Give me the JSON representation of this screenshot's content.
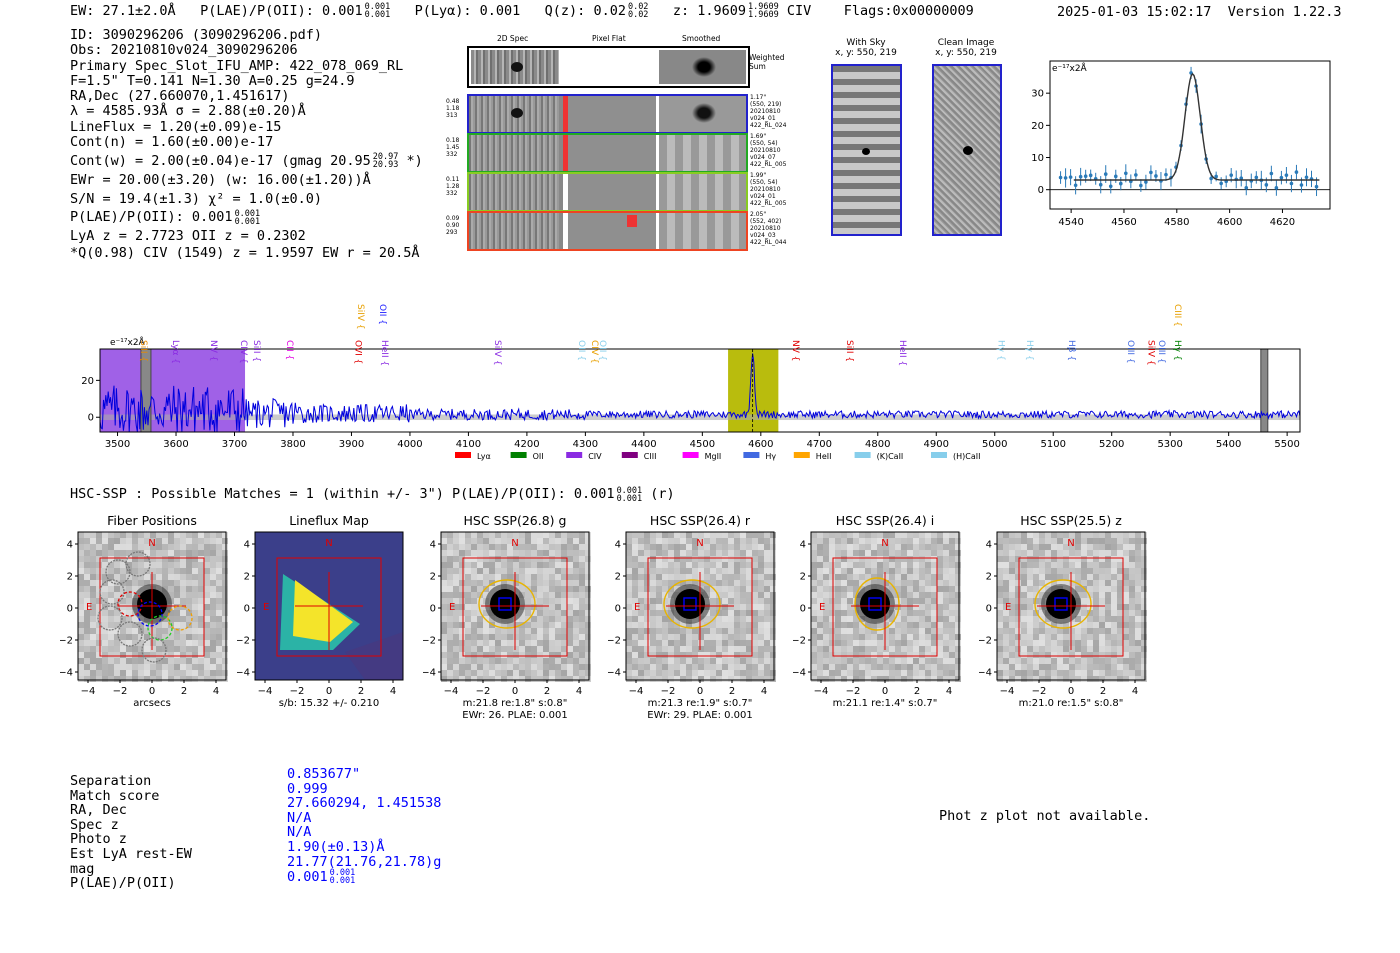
{
  "header": {
    "ew_text": "EW: 27.1±2.0Å",
    "plae_text": "P(LAE)/P(OII): 0.001",
    "plae_sup": [
      "0.001",
      "0.001"
    ],
    "plya_text": "P(Lyα): 0.001",
    "qz_text": "Q(z): 0.02",
    "qz_sup": [
      "0.02",
      "0.02"
    ],
    "z_text": "z: 1.9609",
    "z_sup": [
      "1.9609",
      "1.9609"
    ],
    "line_text": "CIV",
    "flags_text": "Flags:0x00000009",
    "timestamp": "2025-01-03 15:02:17",
    "version": "Version 1.22.3"
  },
  "info": {
    "lines": [
      "ID: 3090296206 (3090296206.pdf)",
      "Obs: 20210810v024_3090296206",
      "Primary Spec_Slot_IFU_AMP: 422_078_069_RL",
      "F=1.5\"  T=0.141  N=1.30  A=0.25  g=24.9",
      "RA,Dec (27.660070,1.451617)",
      "λ = 4585.93Å  σ = 2.88(±0.20)Å",
      "LineFlux = 1.20(±0.09)e-15",
      "Cont(n) = 1.60(±0.00)e-17",
      "Cont(w) = 2.00(±0.04)e-17 (gmag 20.95",
      "EWr = 20.00(±3.20) (w: 16.00(±1.20))Å",
      "S/N = 19.4(±1.3)  χ² = 1.0(±0.0)",
      "P(LAE)/P(OII): 0.001",
      "LyA z = 2.7723  OII z = 0.2302",
      "*Q(0.98) CIV (1549) z = 1.9597  EW r = 20.5Å"
    ],
    "gmag_sup": [
      "20.97",
      "20.93"
    ],
    "gmag_tail": "*)",
    "plae_sup": [
      "0.001",
      "0.001"
    ]
  },
  "cutouts": {
    "col_headers": [
      "2D Spec",
      "Pixel Flat",
      "Smoothed"
    ],
    "weighted_label": "Weighted Sum",
    "rows": [
      {
        "left": [
          "0.48",
          "1.18",
          "313"
        ],
        "right": [
          "1.17\"",
          "(550, 219)",
          "20210810",
          "v024_01",
          "422_RL_024"
        ]
      },
      {
        "left": [
          "0.18",
          "1.45",
          "332"
        ],
        "right": [
          "1.69\"",
          "(550, 54)",
          "20210810",
          "v024_07",
          "422_RL_005"
        ]
      },
      {
        "left": [
          "0.11",
          "1.28",
          "332"
        ],
        "right": [
          "1.99\"",
          "(550, 54)",
          "20210810",
          "v024_01",
          "422_RL_005"
        ]
      },
      {
        "left": [
          "0.09",
          "0.90",
          "293"
        ],
        "right": [
          "2.05\"",
          "(552, 402)",
          "20210810",
          "v024_03",
          "422_RL_044"
        ]
      }
    ],
    "sky_title": "With Sky",
    "sky_sub": "x, y: 550, 219",
    "clean_title": "Clean Image",
    "clean_sub": "x, y: 550, 219"
  },
  "zoom_chart": {
    "type": "line",
    "ylabel": "e⁻¹⁷x2Å",
    "x_ticks": [
      4540,
      4560,
      4580,
      4600,
      4620
    ],
    "y_ticks": [
      0,
      10,
      20,
      30
    ],
    "xlim": [
      4532,
      4638
    ],
    "ylim": [
      -6,
      40
    ],
    "peak_x": 4586,
    "peak_y": 36,
    "continuum": 3,
    "sigma": 2.88
  },
  "chart_data": {
    "type": "line",
    "title": "",
    "ylabel": "e⁻¹⁷x2Å",
    "xlabel": "",
    "x_ticks": [
      3500,
      3600,
      3700,
      3800,
      3900,
      4000,
      4100,
      4200,
      4300,
      4400,
      4500,
      4600,
      4700,
      4800,
      4900,
      5000,
      5100,
      5200,
      5300,
      5400,
      5500
    ],
    "y_ticks": [
      0,
      20
    ],
    "xlim": [
      3470,
      5522
    ],
    "ylim": [
      -8,
      37
    ],
    "highlight_regions": [
      {
        "from": 3470,
        "to": 3718,
        "color": "#9b59e6"
      },
      {
        "from": 4544,
        "to": 4630,
        "color": "#b5b800"
      }
    ],
    "emission_line": {
      "x": 4586,
      "peak": 35
    },
    "line_labels": [
      {
        "name": "SiII",
        "x": 3535,
        "color": "#e88a00",
        "level": 0
      },
      {
        "name": "Lyα",
        "x": 3590,
        "color": "#8a2be2",
        "level": 0
      },
      {
        "name": "NV",
        "x": 3655,
        "color": "#8a2be2",
        "level": 0
      },
      {
        "name": "CIV",
        "x": 3706,
        "color": "#8a2be2",
        "level": 0
      },
      {
        "name": "SiII",
        "x": 3728,
        "color": "#8a2be2",
        "level": 0
      },
      {
        "name": "CII",
        "x": 3785,
        "color": "#e000e0",
        "level": 0
      },
      {
        "name": "OVI",
        "x": 3902,
        "color": "#e00000",
        "level": 0
      },
      {
        "name": "SiIV",
        "x": 3906,
        "color": "#e8a000",
        "level": 1
      },
      {
        "name": "OII",
        "x": 3944,
        "color": "#2222ff",
        "level": 1
      },
      {
        "name": "HeII",
        "x": 3947,
        "color": "#8a2be2",
        "level": 0
      },
      {
        "name": "SiIV",
        "x": 4140,
        "color": "#8a2be2",
        "level": 0
      },
      {
        "name": "OII",
        "x": 4284,
        "color": "#87ceeb",
        "level": 0
      },
      {
        "name": "CIV",
        "x": 4306,
        "color": "#e8a000",
        "level": 0
      },
      {
        "name": "OII",
        "x": 4320,
        "color": "#87ceeb",
        "level": 0
      },
      {
        "name": "NV",
        "x": 4650,
        "color": "#e00000",
        "level": 0
      },
      {
        "name": "SiII",
        "x": 4742,
        "color": "#e00000",
        "level": 0
      },
      {
        "name": "HeII",
        "x": 4833,
        "color": "#8a2be2",
        "level": 0
      },
      {
        "name": "Hγ",
        "x": 5001,
        "color": "#87ceeb",
        "level": 0
      },
      {
        "name": "Hγ",
        "x": 5050,
        "color": "#87ceeb",
        "level": 0
      },
      {
        "name": "Hβ",
        "x": 5122,
        "color": "#4169e1",
        "level": 0
      },
      {
        "name": "OIII",
        "x": 5223,
        "color": "#4169e1",
        "level": 0
      },
      {
        "name": "SiIV",
        "x": 5258,
        "color": "#e00000",
        "level": 0
      },
      {
        "name": "OIII",
        "x": 5276,
        "color": "#4169e1",
        "level": 0
      },
      {
        "name": "CIII",
        "x": 5303,
        "color": "#e8a000",
        "level": 1
      },
      {
        "name": "Hγ",
        "x": 5303,
        "color": "#008000",
        "level": 0
      }
    ],
    "legend": [
      {
        "label": "Lyα",
        "color": "#ff0000"
      },
      {
        "label": "OII",
        "color": "#008000"
      },
      {
        "label": "CIV",
        "color": "#8a2be2"
      },
      {
        "label": "CIII",
        "color": "#800080"
      },
      {
        "label": "MgII",
        "color": "#ff00ff"
      },
      {
        "label": "Hγ",
        "color": "#4169e1"
      },
      {
        "label": "HeII",
        "color": "#ffa500"
      },
      {
        "label": "(K)CaII",
        "color": "#87ceeb"
      },
      {
        "label": "(H)CaII",
        "color": "#87ceeb"
      }
    ]
  },
  "hsc": {
    "header": "HSC-SSP : Possible Matches = 1 (within +/- 3\")  P(LAE)/P(OII): 0.001",
    "header_sup": [
      "0.001",
      "0.001"
    ],
    "header_tail": "(r)",
    "axis_ticks": [
      "4",
      "2",
      "0",
      "−2",
      "−4"
    ],
    "x_ticks": [
      "−4",
      "−2",
      "0",
      "2",
      "4"
    ],
    "panels": [
      {
        "title": "Fiber Positions",
        "caption1": "arcsecs",
        "caption2": ""
      },
      {
        "title": "Lineflux Map",
        "caption1": "s/b: 15.32 +/- 0.210",
        "caption2": ""
      },
      {
        "title": "HSC SSP(26.8) g",
        "caption1": "m:21.8  re:1.8\"  s:0.8\"",
        "caption2": "EWr: 26, PLAE: 0.001"
      },
      {
        "title": "HSC SSP(26.4) r",
        "caption1": "m:21.3  re:1.9\"  s:0.7\"",
        "caption2": "EWr: 29, PLAE: 0.001"
      },
      {
        "title": "HSC SSP(26.4) i",
        "caption1": "m:21.1  re:1.4\"  s:0.7\"",
        "caption2": ""
      },
      {
        "title": "HSC SSP(25.5) z",
        "caption1": "m:21.0  re:1.5\"  s:0.8\"",
        "caption2": ""
      }
    ],
    "n_label": "N",
    "e_label": "E"
  },
  "match": {
    "labels": [
      "Separation",
      "Match score",
      "RA, Dec",
      "Spec z",
      "Photo z",
      "Est LyA rest-EW",
      "mag",
      "P(LAE)/P(OII)"
    ],
    "values": [
      "0.853677\"",
      "0.999",
      "27.660294, 1.451538",
      "N/A",
      "N/A",
      "1.90(±0.13)Å",
      "21.77(21.76,21.78)g",
      "0.001"
    ],
    "plae_sup": [
      "0.001",
      "0.001"
    ],
    "phot_z_note": "Phot z plot not available."
  }
}
